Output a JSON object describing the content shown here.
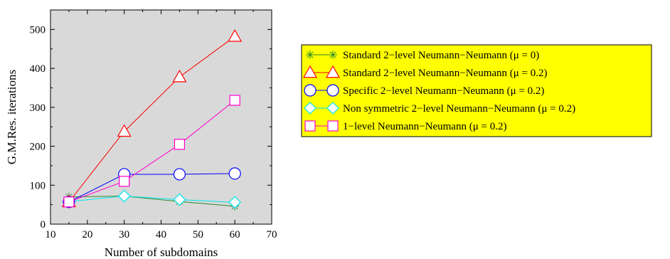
{
  "chart_data": {
    "type": "line",
    "xlabel": "Number of subdomains",
    "ylabel": "G.M.Res. iterations",
    "xlim": [
      10,
      70
    ],
    "ylim": [
      0,
      550
    ],
    "xticks": [
      10,
      20,
      30,
      40,
      50,
      60,
      70
    ],
    "yticks": [
      0,
      100,
      200,
      300,
      400,
      500
    ],
    "grid": false,
    "plot_background": "#d9d9d9",
    "legend_placement": "right",
    "legend_background": "#ffff00",
    "x": [
      15,
      30,
      45,
      60
    ],
    "series": [
      {
        "name": "Standard 2−level Neumann−Neumann (μ = 0)",
        "marker": "asterisk",
        "color": "#2e8b2e",
        "values": [
          70,
          72,
          58,
          46
        ]
      },
      {
        "name": "Standard 2−level Neumann−Neumann (μ = 0.2)",
        "marker": "triangle",
        "color": "#ff0000",
        "values": [
          57,
          238,
          378,
          482
        ]
      },
      {
        "name": "Specific 2−level Neumann−Neumann (μ = 0.2)",
        "marker": "circle",
        "color": "#0000ff",
        "values": [
          57,
          128,
          128,
          130
        ]
      },
      {
        "name": "Non symmetric 2−level Neumann−Neumann (μ = 0.2)",
        "marker": "diamond",
        "color": "#00e5ee",
        "values": [
          58,
          72,
          63,
          56
        ]
      },
      {
        "name": "1−level Neumann−Neumann (μ = 0.2)",
        "marker": "square",
        "color": "#ff00cc",
        "values": [
          57,
          110,
          205,
          318
        ]
      }
    ]
  }
}
